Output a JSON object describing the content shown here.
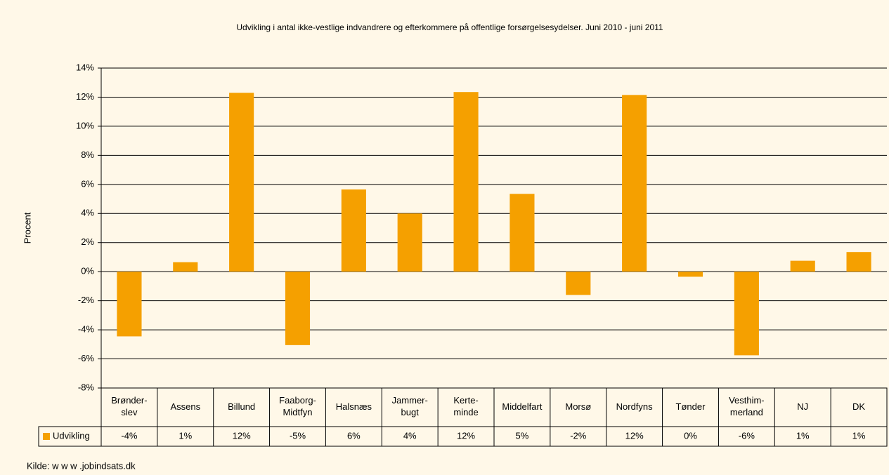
{
  "chart_data": {
    "type": "bar",
    "title": "Udvikling i antal ikke-vestlige indvandrere og efterkommere på offentlige forsørgelsesydelser. Juni 2010 - juni 2011",
    "y_label": "Procent",
    "source": "Kilde: w w w .jobindsats.dk",
    "categories": [
      "Brønder-\nslev",
      "Assens",
      "Billund",
      "Faaborg-\nMidtfyn",
      "Halsnæs",
      "Jammer-\nbugt",
      "Kerte-\nminde",
      "Middelfart",
      "Morsø",
      "Nordfyns",
      "Tønder",
      "Vesthim-\nmerland",
      "NJ",
      "DK"
    ],
    "series": [
      {
        "name": "Udvikling",
        "color": "#f5a000",
        "values": [
          -4.45,
          0.65,
          12.3,
          -5.05,
          5.65,
          4.0,
          12.35,
          5.35,
          -1.6,
          12.15,
          -0.35,
          -5.75,
          0.75,
          1.35
        ],
        "value_labels": [
          "-4%",
          "1%",
          "12%",
          "-5%",
          "6%",
          "4%",
          "12%",
          "5%",
          "-2%",
          "12%",
          "0%",
          "-6%",
          "1%",
          "1%"
        ]
      }
    ],
    "ylim": [
      -8,
      14
    ],
    "yticks": [
      {
        "value": -8,
        "label": "-8%"
      },
      {
        "value": -6,
        "label": "-6%"
      },
      {
        "value": -4,
        "label": "-4%"
      },
      {
        "value": -2,
        "label": "-2%"
      },
      {
        "value": 0,
        "label": "0%"
      },
      {
        "value": 2,
        "label": "2%"
      },
      {
        "value": 4,
        "label": "4%"
      },
      {
        "value": 6,
        "label": "6%"
      },
      {
        "value": 8,
        "label": "8%"
      },
      {
        "value": 10,
        "label": "10%"
      },
      {
        "value": 12,
        "label": "12%"
      },
      {
        "value": 14,
        "label": "14%"
      }
    ],
    "grid": true
  }
}
